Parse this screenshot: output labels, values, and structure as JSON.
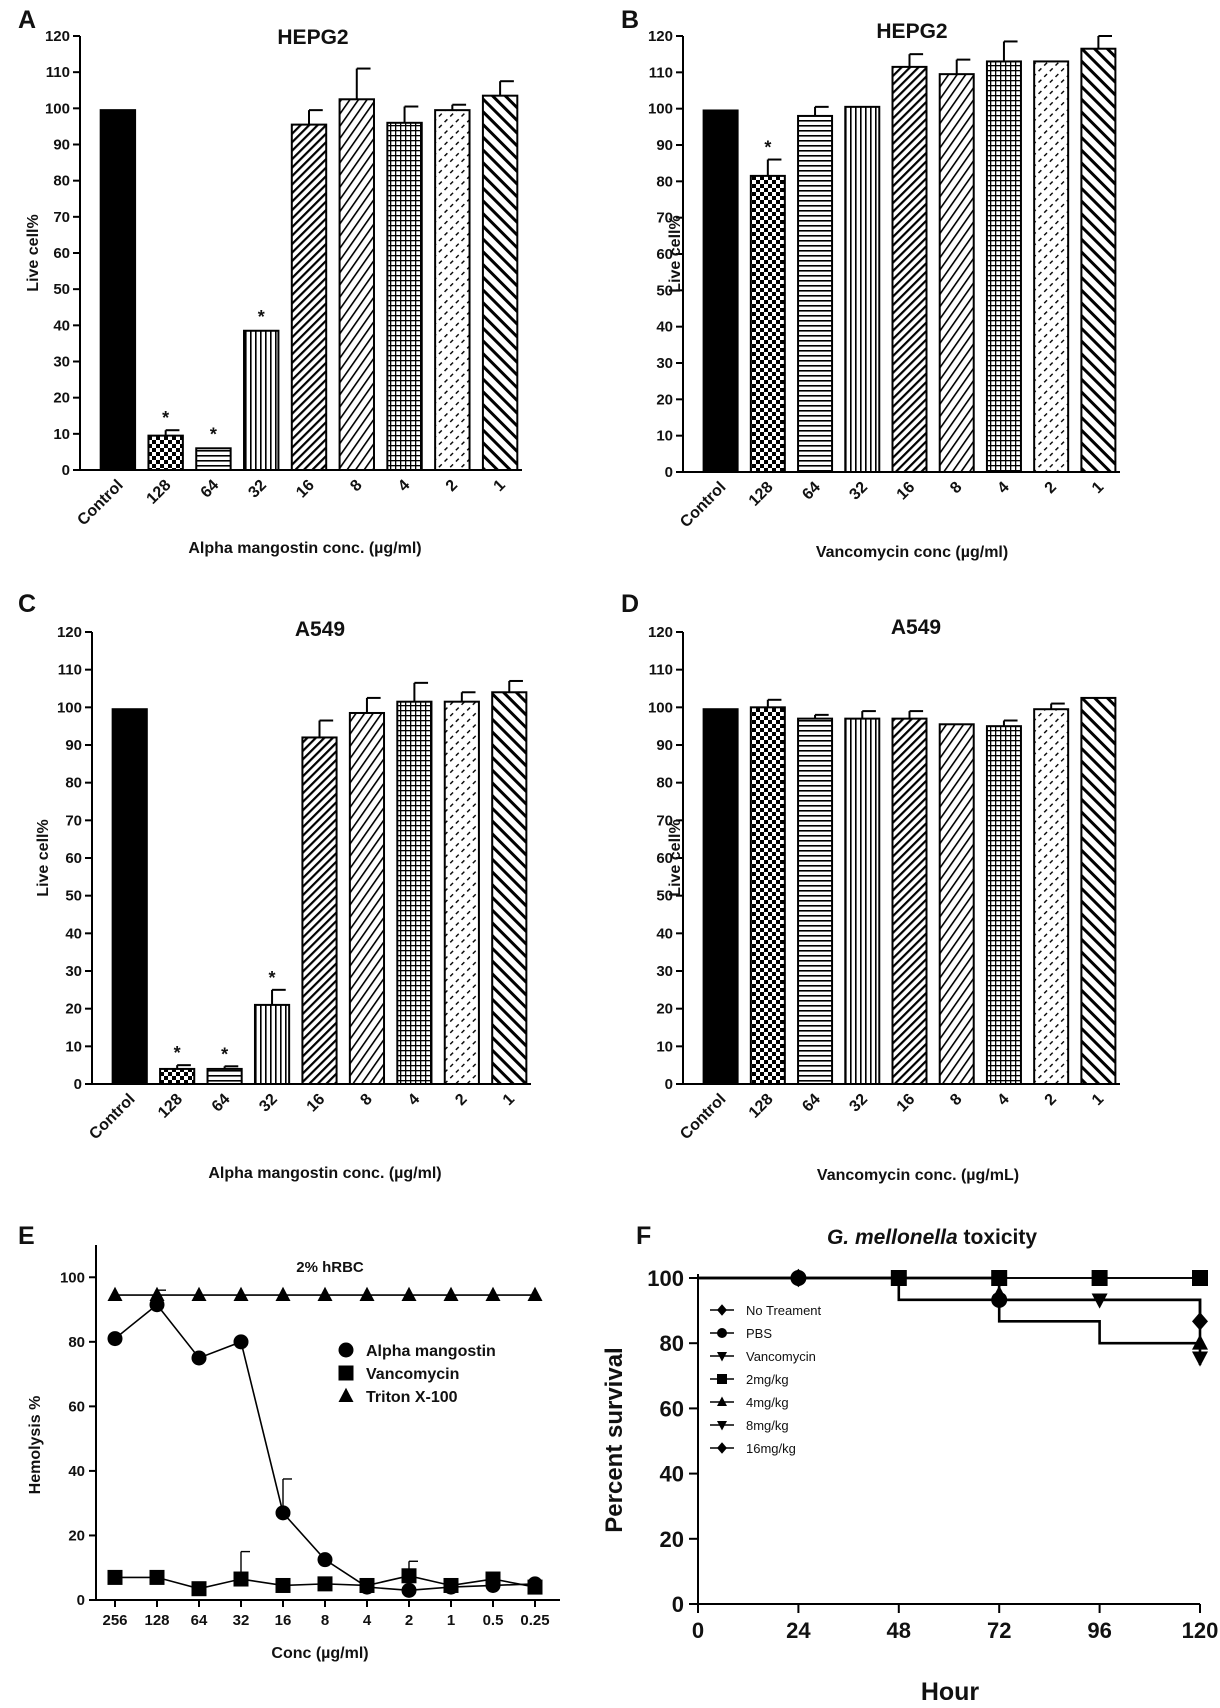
{
  "chart_data": [
    {
      "panel": "A",
      "type": "bar",
      "title": "HEPG2",
      "xlabel": "Alpha mangostin conc. (µg/ml)",
      "ylabel": "Live cell%",
      "ylim": [
        0,
        120
      ],
      "yticks": [
        "0",
        "10",
        "20",
        "30",
        "40",
        "50",
        "60",
        "70",
        "80",
        "90",
        "100",
        "110",
        "120"
      ],
      "categories": [
        "Control",
        "128",
        "64",
        "32",
        "16",
        "8",
        "4",
        "2",
        "1"
      ],
      "values": [
        99.5,
        9.5,
        6,
        38.5,
        95.5,
        102.5,
        96,
        99.5,
        103.5
      ],
      "errors": [
        0.5,
        1.5,
        0.5,
        0.5,
        4,
        8.5,
        4.5,
        1.5,
        4
      ],
      "significance": [
        "",
        "*",
        "*",
        "*",
        "",
        "",
        "",
        "",
        ""
      ]
    },
    {
      "panel": "B",
      "type": "bar",
      "title": "HEPG2",
      "xlabel": "Vancomycin conc (µg/ml)",
      "ylabel": "Live cell%",
      "ylim": [
        0,
        120
      ],
      "yticks": [
        "0",
        "10",
        "20",
        "30",
        "40",
        "50",
        "60",
        "70",
        "80",
        "90",
        "100",
        "110",
        "120"
      ],
      "categories": [
        "Control",
        "128",
        "64",
        "32",
        "16",
        "8",
        "4",
        "2",
        "1"
      ],
      "values": [
        99.5,
        81.5,
        98,
        100.5,
        111.5,
        109.5,
        113,
        113,
        116.5
      ],
      "errors": [
        0.3,
        4.5,
        2.5,
        0.3,
        3.5,
        4,
        5.5,
        0.5,
        3.5
      ],
      "significance": [
        "",
        "*",
        "",
        "",
        "",
        "",
        "",
        "",
        ""
      ]
    },
    {
      "panel": "C",
      "type": "bar",
      "title": "A549",
      "xlabel": "Alpha mangostin conc. (µg/ml)",
      "ylabel": "Live cell%",
      "ylim": [
        0,
        120
      ],
      "yticks": [
        "0",
        "10",
        "20",
        "30",
        "40",
        "50",
        "60",
        "70",
        "80",
        "90",
        "100",
        "110",
        "120"
      ],
      "categories": [
        "Control",
        "128",
        "64",
        "32",
        "16",
        "8",
        "4",
        "2",
        "1"
      ],
      "values": [
        99.5,
        4,
        4,
        21,
        92,
        98.5,
        101.5,
        101.5,
        104
      ],
      "errors": [
        0.3,
        1,
        0.7,
        4,
        4.5,
        4,
        5,
        2.5,
        3
      ],
      "significance": [
        "",
        "*",
        "*",
        "*",
        "",
        "",
        "",
        "",
        ""
      ]
    },
    {
      "panel": "D",
      "type": "bar",
      "title": "A549",
      "xlabel": "Vancomycin conc. (µg/mL)",
      "ylabel": "Live cell%",
      "ylim": [
        0,
        120
      ],
      "yticks": [
        "0",
        "10",
        "20",
        "30",
        "40",
        "50",
        "60",
        "70",
        "80",
        "90",
        "100",
        "110",
        "120"
      ],
      "categories": [
        "Control",
        "128",
        "64",
        "32",
        "16",
        "8",
        "4",
        "2",
        "1"
      ],
      "values": [
        99.5,
        100,
        97,
        97,
        97,
        95.5,
        95,
        99.5,
        102.5
      ],
      "errors": [
        0.3,
        2,
        1,
        2,
        2,
        0.5,
        1.5,
        1.5,
        0.3
      ],
      "significance": [
        "",
        "",
        "",
        "",
        "",
        "",
        "",
        "",
        ""
      ]
    },
    {
      "panel": "E",
      "type": "line",
      "title": "2% hRBC",
      "xlabel": "Conc (µg/ml)",
      "ylabel": "Hemolysis %",
      "ylim": [
        0,
        110
      ],
      "yticks": [
        "0",
        "20",
        "40",
        "60",
        "80",
        "100"
      ],
      "categories": [
        "256",
        "128",
        "64",
        "32",
        "16",
        "8",
        "4",
        "2",
        "1",
        "0.5",
        "0.25"
      ],
      "series": [
        {
          "name": "Alpha mangostin",
          "marker": "circle",
          "values": [
            81,
            91.5,
            75,
            80,
            27,
            12.5,
            4,
            3,
            4,
            4.5,
            5
          ],
          "errors": [
            0,
            4.5,
            0,
            0,
            10.5,
            0,
            0,
            0,
            0,
            0,
            0
          ]
        },
        {
          "name": "Vancomycin",
          "marker": "square",
          "values": [
            7,
            7,
            3.5,
            6.5,
            4.5,
            5,
            4.5,
            7.5,
            4.5,
            6.5,
            4
          ],
          "errors": [
            0,
            0,
            0,
            8.5,
            0,
            0,
            0,
            4.5,
            0,
            0,
            0
          ]
        },
        {
          "name": "Triton X-100",
          "marker": "triangle",
          "values": [
            94.5,
            94.5,
            94.5,
            94.5,
            94.5,
            94.5,
            94.5,
            94.5,
            94.5,
            94.5,
            94.5
          ],
          "errors": [
            0,
            0,
            0,
            0,
            0,
            0,
            0,
            0,
            0,
            0,
            0
          ]
        }
      ],
      "legend_position": "center-right"
    },
    {
      "panel": "F",
      "type": "line",
      "title_italic": "G. mellonella",
      "title_rest": " toxicity",
      "xlabel": "Hour",
      "ylabel": "Percent survival",
      "xlim": [
        0,
        120
      ],
      "ylim": [
        0,
        100
      ],
      "xticks": [
        "0",
        "24",
        "48",
        "72",
        "96",
        "120"
      ],
      "yticks": [
        "0",
        "20",
        "40",
        "60",
        "80",
        "100"
      ],
      "series": [
        {
          "name": "No Treament",
          "marker": "diamond",
          "points": [
            [
              0,
              100
            ],
            [
              120,
              100
            ]
          ]
        },
        {
          "name": "PBS",
          "marker": "circle",
          "points": [
            [
              0,
              100
            ],
            [
              120,
              100
            ]
          ]
        },
        {
          "name": "Vancomycin",
          "marker": "tri-down",
          "points": [
            [
              0,
              100
            ],
            [
              120,
              100
            ]
          ]
        },
        {
          "name": "2mg/kg",
          "marker": "square",
          "points": [
            [
              0,
              100
            ],
            [
              24,
              100
            ],
            [
              48,
              100
            ],
            [
              72,
              100
            ],
            [
              96,
              100
            ],
            [
              120,
              100
            ]
          ]
        },
        {
          "name": "4mg/kg",
          "marker": "triangle",
          "points": [
            [
              0,
              100
            ],
            [
              48,
              100
            ],
            [
              48,
              93.3
            ],
            [
              72,
              93.3
            ],
            [
              120,
              93.3
            ],
            [
              120,
              80
            ]
          ]
        },
        {
          "name": "8mg/kg",
          "marker": "tri-down",
          "points": [
            [
              0,
              100
            ],
            [
              72,
              100
            ],
            [
              72,
              86.7
            ],
            [
              96,
              86.7
            ],
            [
              96,
              80
            ],
            [
              120,
              80
            ],
            [
              120,
              73.3
            ]
          ]
        },
        {
          "name": "16mg/kg",
          "marker": "diamond",
          "points": [
            [
              0,
              100
            ],
            [
              72,
              100
            ],
            [
              72,
              93.3
            ],
            [
              120,
              93.3
            ],
            [
              120,
              86.7
            ]
          ]
        }
      ],
      "legend_position": "top-left"
    }
  ]
}
